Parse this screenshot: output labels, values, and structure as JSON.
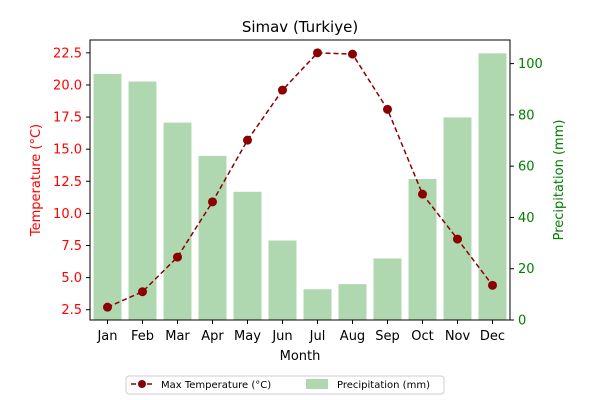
{
  "chart_data": {
    "type": "bar",
    "title": "Simav (Turkiye)",
    "xlabel": "Month",
    "categories": [
      "Jan",
      "Feb",
      "Mar",
      "Apr",
      "May",
      "Jun",
      "Jul",
      "Aug",
      "Sep",
      "Oct",
      "Nov",
      "Dec"
    ],
    "series": [
      {
        "name": "Max Temperature (°C)",
        "type": "line",
        "axis": "left",
        "color": "#8b0000",
        "line_style": "dashed",
        "marker": "circle",
        "values": [
          2.7,
          3.9,
          6.6,
          10.9,
          15.7,
          19.6,
          22.5,
          22.4,
          18.1,
          11.5,
          8.0,
          4.4
        ]
      },
      {
        "name": "Precipitation (mm)",
        "type": "bar",
        "axis": "right",
        "color": "#b0d8b0",
        "values": [
          96,
          93,
          77,
          64,
          50,
          31,
          12,
          14,
          24,
          55,
          79,
          104
        ]
      }
    ],
    "y_left": {
      "label": "Temperature (°C)",
      "color": "#ff0000",
      "lim": [
        1.7,
        23.5
      ],
      "ticks": [
        "2.5",
        "5.0",
        "7.5",
        "10.0",
        "12.5",
        "15.0",
        "17.5",
        "20.0",
        "22.5"
      ]
    },
    "y_right": {
      "label": "Precipitation (mm)",
      "color": "#008000",
      "lim": [
        0,
        109.2
      ],
      "ticks": [
        "0",
        "20",
        "40",
        "60",
        "80",
        "100"
      ]
    },
    "grid": false,
    "legend_placement": "bottom-center"
  }
}
